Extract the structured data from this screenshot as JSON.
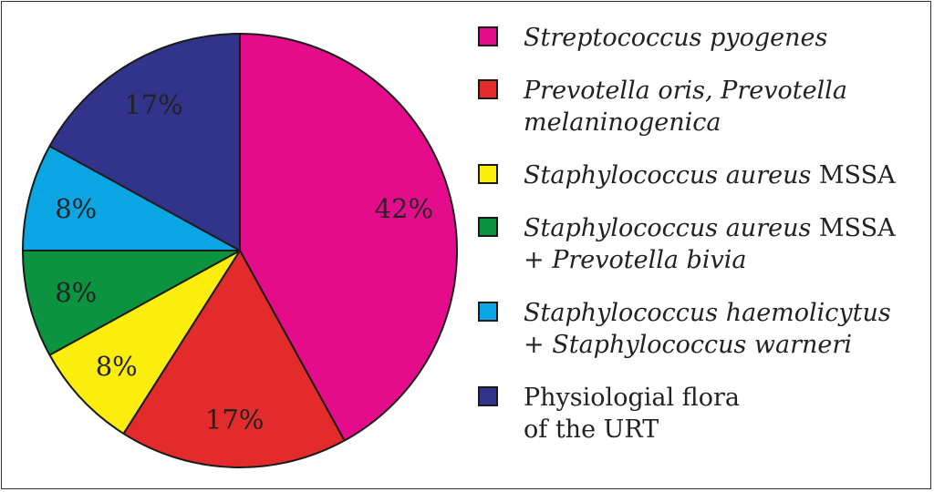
{
  "chart_data": {
    "type": "pie",
    "start_angle_deg": 0,
    "slices": [
      {
        "label": "42%",
        "value": 42,
        "color": "#E50C8B"
      },
      {
        "label": "17%",
        "value": 17,
        "color": "#E32B2B"
      },
      {
        "label": "8%",
        "value": 8,
        "color": "#FCEE0C"
      },
      {
        "label": "8%",
        "value": 8,
        "color": "#0B9340"
      },
      {
        "label": "8%",
        "value": 8,
        "color": "#0AA5E3"
      },
      {
        "label": "17%",
        "value": 17,
        "color": "#32338B"
      }
    ],
    "legend": {
      "placement": "right",
      "items": [
        {
          "line1": "Streptococcus pyogenes",
          "color": "#E50C8B"
        },
        {
          "line1": "Prevotella oris, Prevotella",
          "line2": "melaninogenica",
          "color": "#E32B2B"
        },
        {
          "line1a": "Staphylococcus aureus",
          "line1b": " MSSA",
          "color": "#FCEE0C"
        },
        {
          "line1a": "Staphylococcus aureus",
          "line1b": " MSSA",
          "line2a": "+ ",
          "line2b": "Prevotella bivia",
          "color": "#0B9340"
        },
        {
          "line1": "Staphylococcus haemolicytus",
          "line2a": "+ ",
          "line2b": "Staphylococcus warneri",
          "color": "#0AA5E3"
        },
        {
          "line1": "Physiologial flora",
          "line2": "of the URT",
          "color": "#32338B"
        }
      ]
    }
  }
}
